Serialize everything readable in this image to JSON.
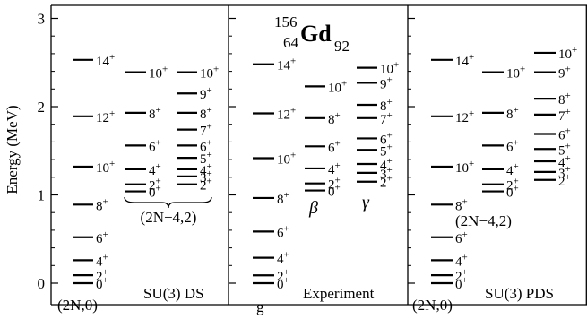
{
  "chart_data": {
    "type": "level-scheme",
    "ylabel": "Energy (MeV)",
    "ylim": [
      0,
      3
    ],
    "yticks": [
      0,
      1,
      2,
      3
    ],
    "nucleus": {
      "mass": "156",
      "charge": "64",
      "symbol": "Gd",
      "neutrons": "92"
    },
    "panels": [
      {
        "name": "SU(3) DS",
        "caption": "SU(3) DS",
        "band_labels": [
          {
            "text": "(2N,0)",
            "anchor": "bottom-left"
          },
          {
            "text": "(2N−4,2)",
            "anchor": "under-column-2"
          }
        ],
        "columns": [
          {
            "levels": [
              {
                "label": "0+",
                "energy": 0.0
              },
              {
                "label": "2+",
                "energy": 0.09
              },
              {
                "label": "4+",
                "energy": 0.26
              },
              {
                "label": "6+",
                "energy": 0.52
              },
              {
                "label": "8+",
                "energy": 0.89
              },
              {
                "label": "10+",
                "energy": 1.32
              },
              {
                "label": "12+",
                "energy": 1.89
              },
              {
                "label": "14+",
                "energy": 2.53
              }
            ]
          },
          {
            "levels": [
              {
                "label": "0+",
                "energy": 1.04
              },
              {
                "label": "2+",
                "energy": 1.12
              },
              {
                "label": "4+",
                "energy": 1.29
              },
              {
                "label": "6+",
                "energy": 1.56
              },
              {
                "label": "8+",
                "energy": 1.93
              },
              {
                "label": "10+",
                "energy": 2.39
              }
            ]
          },
          {
            "levels": [
              {
                "label": "2+",
                "energy": 1.12
              },
              {
                "label": "3+",
                "energy": 1.21
              },
              {
                "label": "4+",
                "energy": 1.29
              },
              {
                "label": "5+",
                "energy": 1.42
              },
              {
                "label": "6+",
                "energy": 1.56
              },
              {
                "label": "7+",
                "energy": 1.74
              },
              {
                "label": "8+",
                "energy": 1.93
              },
              {
                "label": "9+",
                "energy": 2.15
              },
              {
                "label": "10+",
                "energy": 2.39
              }
            ]
          }
        ]
      },
      {
        "name": "Experiment",
        "caption": "Experiment",
        "band_labels": [
          {
            "text": "g",
            "anchor": "col-0"
          },
          {
            "text": "β",
            "anchor": "col-1"
          },
          {
            "text": "γ",
            "anchor": "col-2"
          }
        ],
        "columns": [
          {
            "levels": [
              {
                "label": "0+",
                "energy": 0.0
              },
              {
                "label": "2+",
                "energy": 0.089
              },
              {
                "label": "4+",
                "energy": 0.288
              },
              {
                "label": "6+",
                "energy": 0.585
              },
              {
                "label": "8+",
                "energy": 0.965
              },
              {
                "label": "10+",
                "energy": 1.416
              },
              {
                "label": "12+",
                "energy": 1.924
              },
              {
                "label": "14+",
                "energy": 2.48
              }
            ]
          },
          {
            "levels": [
              {
                "label": "0+",
                "energy": 1.05
              },
              {
                "label": "2+",
                "energy": 1.13
              },
              {
                "label": "4+",
                "energy": 1.3
              },
              {
                "label": "6+",
                "energy": 1.55
              },
              {
                "label": "8+",
                "energy": 1.87
              },
              {
                "label": "10+",
                "energy": 2.23
              }
            ]
          },
          {
            "levels": [
              {
                "label": "2+",
                "energy": 1.15
              },
              {
                "label": "3+",
                "energy": 1.25
              },
              {
                "label": "4+",
                "energy": 1.35
              },
              {
                "label": "5+",
                "energy": 1.51
              },
              {
                "label": "6+",
                "energy": 1.64
              },
              {
                "label": "7+",
                "energy": 1.87
              },
              {
                "label": "8+",
                "energy": 2.02
              },
              {
                "label": "9+",
                "energy": 2.27
              },
              {
                "label": "10+",
                "energy": 2.44
              }
            ]
          }
        ]
      },
      {
        "name": "SU(3) PDS",
        "caption": "SU(3) PDS",
        "band_labels": [
          {
            "text": "(2N,0)",
            "anchor": "bottom-left"
          },
          {
            "text": "(2N−4,2)",
            "anchor": "mid-left"
          }
        ],
        "columns": [
          {
            "levels": [
              {
                "label": "0+",
                "energy": 0.0
              },
              {
                "label": "2+",
                "energy": 0.09
              },
              {
                "label": "4+",
                "energy": 0.26
              },
              {
                "label": "6+",
                "energy": 0.52
              },
              {
                "label": "8+",
                "energy": 0.89
              },
              {
                "label": "10+",
                "energy": 1.32
              },
              {
                "label": "12+",
                "energy": 1.89
              },
              {
                "label": "14+",
                "energy": 2.53
              }
            ]
          },
          {
            "levels": [
              {
                "label": "0+",
                "energy": 1.04
              },
              {
                "label": "2+",
                "energy": 1.12
              },
              {
                "label": "4+",
                "energy": 1.29
              },
              {
                "label": "6+",
                "energy": 1.56
              },
              {
                "label": "8+",
                "energy": 1.93
              },
              {
                "label": "10+",
                "energy": 2.39
              }
            ]
          },
          {
            "levels": [
              {
                "label": "2+",
                "energy": 1.17
              },
              {
                "label": "3+",
                "energy": 1.26
              },
              {
                "label": "4+",
                "energy": 1.38
              },
              {
                "label": "5+",
                "energy": 1.52
              },
              {
                "label": "6+",
                "energy": 1.69
              },
              {
                "label": "7+",
                "energy": 1.91
              },
              {
                "label": "8+",
                "energy": 2.09
              },
              {
                "label": "9+",
                "energy": 2.39
              },
              {
                "label": "10+",
                "energy": 2.61
              }
            ]
          }
        ]
      }
    ]
  }
}
